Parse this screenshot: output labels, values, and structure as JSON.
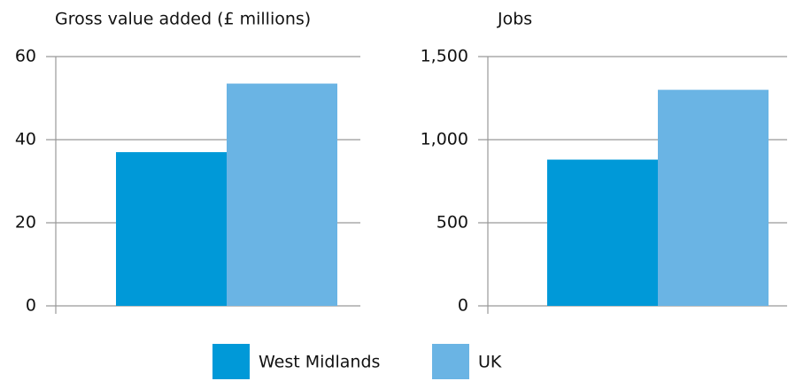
{
  "chart_data": [
    {
      "type": "bar",
      "title": "Gross value added (£ millions)",
      "categories": [
        null
      ],
      "series": [
        {
          "name": "West Midlands",
          "color": "#0099d8",
          "values": [
            37
          ]
        },
        {
          "name": "UK",
          "color": "#6ab4e4",
          "values": [
            53.5
          ]
        }
      ],
      "ylim": [
        0,
        60
      ],
      "yticks": [
        0,
        20,
        40,
        60
      ],
      "grid": true
    },
    {
      "type": "bar",
      "title": "Jobs",
      "categories": [
        null
      ],
      "series": [
        {
          "name": "West Midlands",
          "color": "#0099d8",
          "values": [
            880
          ]
        },
        {
          "name": "UK",
          "color": "#6ab4e4",
          "values": [
            1300
          ]
        }
      ],
      "ylim": [
        0,
        1500
      ],
      "yticks": [
        0,
        500,
        {
          "value": 1000,
          "label": "1,000"
        },
        {
          "value": 1500,
          "label": "1,500"
        }
      ],
      "grid": true
    }
  ]
}
